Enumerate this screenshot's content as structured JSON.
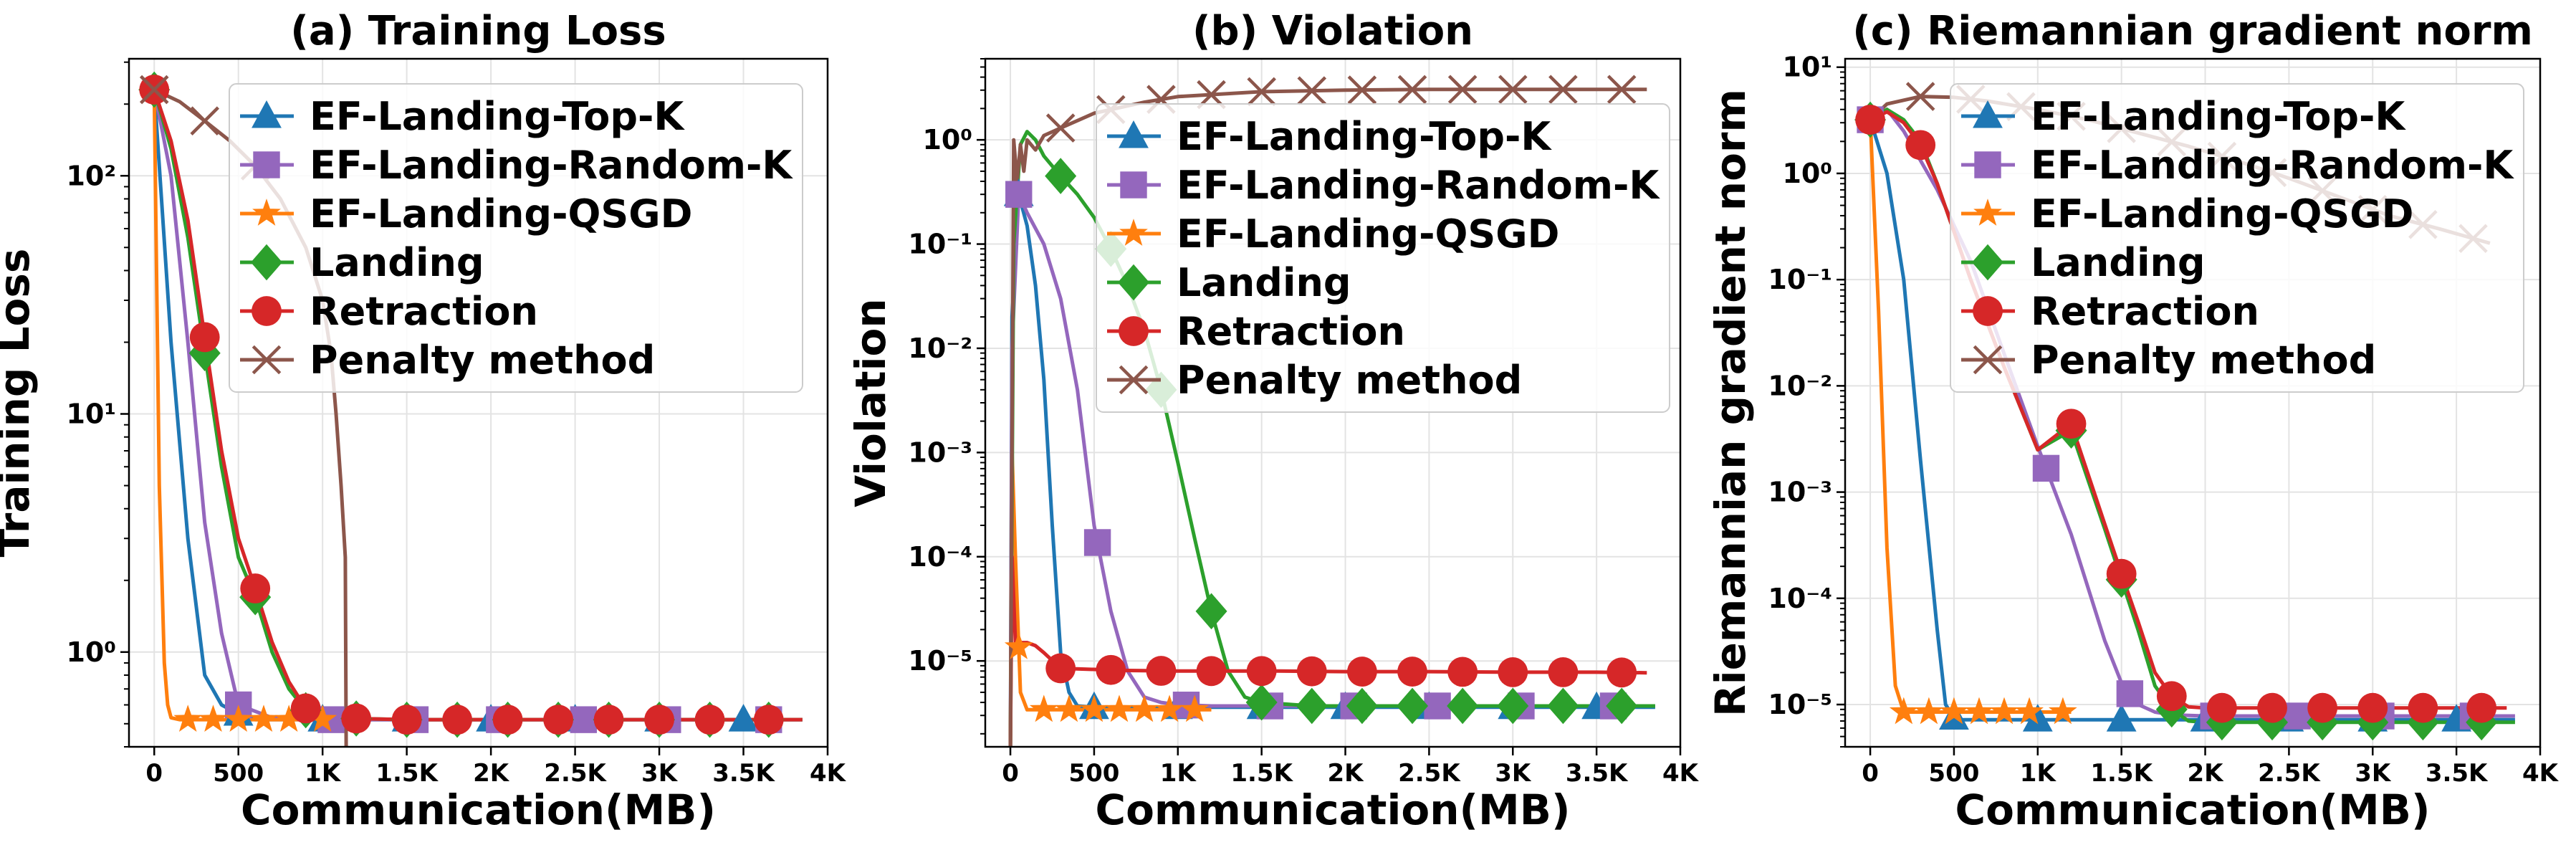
{
  "chart_data": [
    {
      "type": "line",
      "title": "(a) Training Loss",
      "xlabel": "Communication(MB)",
      "ylabel": "Training Loss",
      "xlim": [
        -150,
        4000
      ],
      "xticks": [
        0,
        500,
        1000,
        1500,
        2000,
        2500,
        3000,
        3500,
        4000
      ],
      "xtick_labels": [
        "0",
        "500",
        "1K",
        "1.5K",
        "2K",
        "2.5K",
        "3K",
        "3.5K",
        "4K"
      ],
      "yscale": "log",
      "ylim": [
        0.4,
        310
      ],
      "yticks": [
        1,
        10,
        100
      ],
      "ytick_labels": [
        "10⁰",
        "10¹",
        "10²"
      ],
      "grid": true,
      "legend_position": "top-right",
      "series": [
        {
          "name": "EF-Landing-Top-K",
          "color": "#1f77b4",
          "marker": "triangle",
          "x": [
            0,
            100,
            200,
            300,
            400,
            500,
            600,
            1000,
            1500,
            2000,
            2500,
            3000,
            3500,
            3850
          ],
          "y": [
            230,
            20,
            3,
            0.8,
            0.6,
            0.55,
            0.52,
            0.52,
            0.52,
            0.52,
            0.52,
            0.52,
            0.52,
            0.52
          ],
          "marker_x": [
            500,
            1000,
            1500,
            2000,
            2500,
            3000,
            3500
          ]
        },
        {
          "name": "EF-Landing-Random-K",
          "color": "#9467bd",
          "marker": "square",
          "x": [
            0,
            100,
            200,
            300,
            400,
            500,
            700,
            1000,
            1500,
            2000,
            2500,
            3000,
            3500,
            3850
          ],
          "y": [
            230,
            100,
            20,
            3.5,
            1.2,
            0.6,
            0.53,
            0.52,
            0.52,
            0.52,
            0.52,
            0.52,
            0.52,
            0.52
          ],
          "marker_x": [
            500,
            1050,
            1550,
            2050,
            2550,
            3050,
            3650
          ]
        },
        {
          "name": "EF-Landing-QSGD",
          "color": "#ff7f0e",
          "marker": "star",
          "x": [
            0,
            30,
            60,
            80,
            100,
            150,
            200,
            500,
            800,
            1000,
            1200
          ],
          "y": [
            230,
            5,
            0.9,
            0.6,
            0.53,
            0.52,
            0.52,
            0.52,
            0.52,
            0.52,
            0.52
          ],
          "marker_x": [
            200,
            350,
            500,
            650,
            800,
            1000
          ]
        },
        {
          "name": "Landing",
          "color": "#2ca02c",
          "marker": "diamond",
          "x": [
            0,
            100,
            200,
            300,
            400,
            500,
            600,
            700,
            800,
            900,
            1000,
            1500,
            2000,
            2500,
            3000,
            3500,
            3850
          ],
          "y": [
            230,
            130,
            55,
            18,
            6,
            2.5,
            1.7,
            1.0,
            0.7,
            0.57,
            0.53,
            0.52,
            0.52,
            0.52,
            0.52,
            0.52,
            0.52
          ],
          "marker_x": [
            0,
            300,
            600,
            900,
            1200,
            1500,
            1800,
            2100,
            2400,
            2700,
            3000,
            3300,
            3650
          ]
        },
        {
          "name": "Retraction",
          "color": "#d62728",
          "marker": "circle",
          "x": [
            0,
            100,
            200,
            300,
            400,
            500,
            600,
            700,
            800,
            900,
            1000,
            1500,
            2000,
            2500,
            3000,
            3500,
            3850
          ],
          "y": [
            230,
            140,
            65,
            21,
            7,
            3,
            1.85,
            1.1,
            0.75,
            0.58,
            0.53,
            0.52,
            0.52,
            0.52,
            0.52,
            0.52,
            0.52
          ],
          "marker_x": [
            0,
            300,
            600,
            900,
            1200,
            1500,
            1800,
            2100,
            2400,
            2700,
            3000,
            3300,
            3650
          ]
        },
        {
          "name": "Penalty method",
          "color": "#8c564b",
          "marker": "x",
          "x": [
            0,
            150,
            300,
            450,
            600,
            750,
            900,
            1000,
            1050,
            1080,
            1110,
            1135,
            1140
          ],
          "y": [
            230,
            205,
            170,
            140,
            110,
            80,
            50,
            30,
            18,
            10,
            5,
            2.5,
            0.4
          ],
          "marker_x": [
            0,
            300,
            600
          ]
        }
      ]
    },
    {
      "type": "line",
      "title": "(b) Violation",
      "xlabel": "Communication(MB)",
      "ylabel": "Violation",
      "xlim": [
        -150,
        4000
      ],
      "xticks": [
        0,
        500,
        1000,
        1500,
        2000,
        2500,
        3000,
        3500,
        4000
      ],
      "xtick_labels": [
        "0",
        "500",
        "1K",
        "1.5K",
        "2K",
        "2.5K",
        "3K",
        "3.5K",
        "4K"
      ],
      "yscale": "log",
      "ylim": [
        1.5e-06,
        6
      ],
      "yticks": [
        1e-05,
        0.0001,
        0.001,
        0.01,
        0.1,
        1
      ],
      "ytick_labels": [
        "10⁻⁵",
        "10⁻⁴",
        "10⁻³",
        "10⁻²",
        "10⁻¹",
        "10⁰"
      ],
      "grid": true,
      "legend_position": "top-right",
      "series": [
        {
          "name": "EF-Landing-Top-K",
          "color": "#1f77b4",
          "marker": "triangle",
          "x": [
            0,
            10,
            50,
            100,
            150,
            200,
            250,
            300,
            350,
            400,
            500,
            700,
            1000,
            1500,
            2000,
            2500,
            3000,
            3500,
            3850
          ],
          "y": [
            1.5e-06,
            0.02,
            0.3,
            0.15,
            0.04,
            0.005,
            0.0002,
            1.2e-05,
            5e-06,
            3.7e-06,
            3.6e-06,
            3.6e-06,
            3.6e-06,
            3.6e-06,
            3.6e-06,
            3.6e-06,
            3.6e-06,
            3.6e-06,
            3.6e-06
          ],
          "marker_x": [
            50,
            500,
            1000,
            1500,
            2000,
            2500,
            3000,
            3500
          ]
        },
        {
          "name": "EF-Landing-Random-K",
          "color": "#9467bd",
          "marker": "square",
          "x": [
            0,
            10,
            50,
            100,
            200,
            300,
            400,
            500,
            600,
            700,
            800,
            900,
            1000,
            1200,
            1500,
            2000,
            2500,
            3000,
            3500,
            3850
          ],
          "y": [
            1.5e-06,
            0.01,
            0.3,
            0.2,
            0.1,
            0.03,
            0.004,
            0.0002,
            3e-05,
            8e-06,
            4.5e-06,
            4e-06,
            3.8e-06,
            3.7e-06,
            3.7e-06,
            3.7e-06,
            3.7e-06,
            3.7e-06,
            3.7e-06,
            3.7e-06
          ],
          "marker_x": [
            50,
            520,
            1050,
            1550,
            2050,
            2550,
            3050,
            3600
          ]
        },
        {
          "name": "EF-Landing-QSGD",
          "color": "#ff7f0e",
          "marker": "star",
          "x": [
            0,
            10,
            30,
            60,
            100,
            200,
            400,
            600,
            800,
            1000,
            1200
          ],
          "y": [
            1.5e-06,
            0.001,
            0.0001,
            5e-06,
            3.4e-06,
            3.4e-06,
            3.4e-06,
            3.4e-06,
            3.4e-06,
            3.4e-06,
            3.4e-06
          ],
          "marker_x": [
            50,
            200,
            350,
            500,
            650,
            800,
            950,
            1100
          ]
        },
        {
          "name": "Landing",
          "color": "#2ca02c",
          "marker": "diamond",
          "x": [
            0,
            20,
            60,
            100,
            150,
            200,
            300,
            400,
            500,
            600,
            700,
            800,
            900,
            1000,
            1100,
            1200,
            1300,
            1400,
            1500,
            1800,
            2000,
            2500,
            3000,
            3500,
            3850
          ],
          "y": [
            1.5e-06,
            0.1,
            0.9,
            1.2,
            1.0,
            0.7,
            0.45,
            0.3,
            0.18,
            0.09,
            0.04,
            0.015,
            0.004,
            0.0008,
            0.00015,
            3e-05,
            8e-06,
            4.5e-06,
            4e-06,
            3.7e-06,
            3.7e-06,
            3.7e-06,
            3.7e-06,
            3.7e-06,
            3.7e-06
          ],
          "marker_x": [
            300,
            600,
            900,
            1200,
            1500,
            1800,
            2100,
            2400,
            2700,
            3000,
            3300,
            3650
          ]
        },
        {
          "name": "Retraction",
          "color": "#d62728",
          "marker": "circle",
          "x": [
            0,
            10,
            30,
            100,
            150,
            200,
            300,
            500,
            700,
            1000,
            1300,
            1600,
            2000,
            2500,
            3000,
            3500,
            3800
          ],
          "y": [
            1.5e-06,
            0.0001,
            1.5e-05,
            1.5e-05,
            1.4e-05,
            1.2e-05,
            8.5e-06,
            8.3e-06,
            8.1e-06,
            8e-06,
            8e-06,
            8e-06,
            7.9e-06,
            7.9e-06,
            7.8e-06,
            7.8e-06,
            7.7e-06
          ],
          "marker_x": [
            300,
            600,
            900,
            1200,
            1500,
            1800,
            2100,
            2400,
            2700,
            3000,
            3300,
            3650
          ]
        },
        {
          "name": "Penalty method",
          "color": "#8c564b",
          "marker": "x",
          "x": [
            0,
            20,
            40,
            60,
            80,
            100,
            150,
            200,
            300,
            500,
            800,
            1000,
            1500,
            2000,
            2500,
            3000,
            3500,
            3800
          ],
          "y": [
            1.5e-06,
            1.0,
            0.4,
            0.9,
            0.5,
            1.0,
            0.8,
            1.1,
            1.3,
            1.8,
            2.3,
            2.6,
            2.9,
            3.0,
            3.05,
            3.05,
            3.05,
            3.05
          ],
          "marker_x": [
            300,
            600,
            900,
            1200,
            1500,
            1800,
            2100,
            2400,
            2700,
            3000,
            3300,
            3650
          ]
        }
      ]
    },
    {
      "type": "line",
      "title": "(c) Riemannian gradient norm",
      "xlabel": "Communication(MB)",
      "ylabel": "Riemannian gradient norm",
      "xlim": [
        -150,
        4000
      ],
      "xticks": [
        0,
        500,
        1000,
        1500,
        2000,
        2500,
        3000,
        3500,
        4000
      ],
      "xtick_labels": [
        "0",
        "500",
        "1K",
        "1.5K",
        "2K",
        "2.5K",
        "3K",
        "3.5K",
        "4K"
      ],
      "yscale": "log",
      "ylim": [
        4e-06,
        12
      ],
      "yticks": [
        1e-05,
        0.0001,
        0.001,
        0.01,
        0.1,
        1,
        10
      ],
      "ytick_labels": [
        "10⁻⁵",
        "10⁻⁴",
        "10⁻³",
        "10⁻²",
        "10⁻¹",
        "10⁰",
        "10¹"
      ],
      "grid": true,
      "legend_position": "top-right",
      "series": [
        {
          "name": "EF-Landing-Top-K",
          "color": "#1f77b4",
          "marker": "triangle",
          "x": [
            0,
            100,
            200,
            300,
            400,
            450,
            500,
            550,
            700,
            1000,
            1500,
            2000,
            2500,
            3000,
            3500,
            3850
          ],
          "y": [
            3.2,
            1.0,
            0.1,
            0.002,
            5e-05,
            1e-05,
            7.5e-06,
            7.2e-06,
            7.2e-06,
            7.2e-06,
            7.2e-06,
            7.2e-06,
            7.2e-06,
            7.2e-06,
            7.2e-06,
            7.2e-06
          ],
          "marker_x": [
            500,
            1000,
            1500,
            2000,
            2500,
            3000,
            3500
          ]
        },
        {
          "name": "EF-Landing-Random-K",
          "color": "#9467bd",
          "marker": "square",
          "x": [
            0,
            100,
            200,
            400,
            600,
            800,
            1000,
            1200,
            1400,
            1500,
            1600,
            1700,
            1800,
            2000,
            2500,
            3000,
            3500,
            3850
          ],
          "y": [
            3.2,
            4.0,
            2.5,
            0.7,
            0.15,
            0.02,
            0.0027,
            0.0004,
            4e-05,
            1.6e-05,
            1e-05,
            8.5e-06,
            8e-06,
            7.8e-06,
            7.8e-06,
            7.8e-06,
            7.8e-06,
            7.8e-06
          ],
          "marker_x": [
            0,
            1050,
            1550,
            2050,
            2550,
            3050,
            3600
          ]
        },
        {
          "name": "EF-Landing-QSGD",
          "color": "#ff7f0e",
          "marker": "star",
          "x": [
            0,
            50,
            100,
            150,
            200,
            300,
            500,
            700,
            1000,
            1200
          ],
          "y": [
            3.2,
            0.05,
            0.0003,
            1.5e-05,
            8.5e-06,
            8.5e-06,
            8.5e-06,
            8.5e-06,
            8.5e-06,
            8.5e-06
          ],
          "marker_x": [
            200,
            350,
            500,
            650,
            800,
            950,
            1150
          ]
        },
        {
          "name": "Landing",
          "color": "#2ca02c",
          "marker": "diamond",
          "x": [
            0,
            100,
            200,
            300,
            400,
            600,
            800,
            1000,
            1200,
            1400,
            1500,
            1600,
            1700,
            1800,
            1900,
            2000,
            2500,
            3000,
            3500,
            3850
          ],
          "y": [
            3.2,
            4.0,
            3.2,
            2.0,
            0.8,
            0.1,
            0.015,
            0.0025,
            0.0038,
            0.00045,
            0.00015,
            5e-05,
            1.5e-05,
            9e-06,
            7e-06,
            6.8e-06,
            6.8e-06,
            6.8e-06,
            6.8e-06,
            6.8e-06
          ],
          "marker_x": [
            0,
            1200,
            1500,
            1800,
            2100,
            2400,
            2700,
            3000,
            3300,
            3650
          ]
        },
        {
          "name": "Retraction",
          "color": "#d62728",
          "marker": "circle",
          "x": [
            0,
            100,
            200,
            300,
            400,
            600,
            800,
            1000,
            1200,
            1400,
            1500,
            1600,
            1700,
            1800,
            1900,
            2000,
            2500,
            3000,
            3500,
            3800
          ],
          "y": [
            3.2,
            3.8,
            3.0,
            1.85,
            0.8,
            0.1,
            0.015,
            0.0025,
            0.0044,
            0.0005,
            0.00017,
            6e-05,
            2e-05,
            1.2e-05,
            9.5e-06,
            9.3e-06,
            9.3e-06,
            9.3e-06,
            9.3e-06,
            9.3e-06
          ],
          "marker_x": [
            0,
            300,
            1200,
            1500,
            1800,
            2100,
            2400,
            2700,
            3000,
            3300,
            3650
          ]
        },
        {
          "name": "Penalty method",
          "color": "#8c564b",
          "marker": "x",
          "x": [
            0,
            100,
            300,
            500,
            700,
            1000,
            1300,
            1600,
            1900,
            2200,
            2500,
            2800,
            3100,
            3400,
            3700
          ],
          "y": [
            3.2,
            4.5,
            5.3,
            5.2,
            4.8,
            4.0,
            3.2,
            2.4,
            1.8,
            1.3,
            0.9,
            0.6,
            0.4,
            0.3,
            0.22
          ],
          "marker_x": [
            300,
            600,
            900,
            1200,
            1500,
            1800,
            2100,
            2400,
            2700,
            3000,
            3300,
            3600
          ]
        }
      ]
    }
  ]
}
